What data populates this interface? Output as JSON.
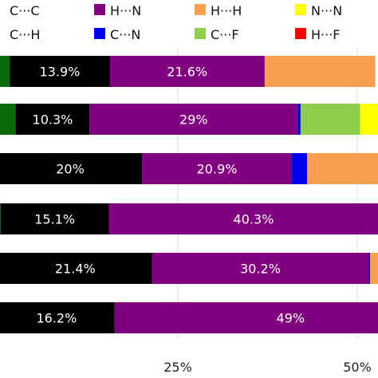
{
  "chart_data": {
    "type": "bar",
    "orientation": "horizontal",
    "stacked": true,
    "xlim": [
      -10,
      130
    ],
    "x_ticks": [
      25,
      50
    ],
    "x_tick_labels": [
      "25%",
      "50%"
    ],
    "grid": "vertical lines at ticks",
    "legend_position": "top",
    "series": [
      {
        "name": "C···C",
        "color": "#000000",
        "values": [
          13.9,
          10.3,
          20.0,
          15.1,
          21.4,
          16.2
        ]
      },
      {
        "name": "C···H",
        "color": "#000000",
        "values": [
          0,
          0,
          0,
          0,
          0,
          0
        ]
      },
      {
        "name": "H···N",
        "color": "#800080",
        "values": [
          21.6,
          29.0,
          20.9,
          40.3,
          30.2,
          49.0
        ]
      },
      {
        "name": "C···N",
        "color": "#0000ee",
        "values": [
          0,
          0.4,
          2.1,
          0,
          0.2,
          0
        ]
      },
      {
        "name": "H···H",
        "color": "#f6a04d",
        "values": [
          15.4,
          0,
          12.0,
          0,
          2.0,
          0
        ]
      },
      {
        "name": "C···F",
        "color": "#8fce4a",
        "values": [
          0,
          8.3,
          0,
          0,
          0,
          0
        ]
      },
      {
        "name": "N···N",
        "color": "#ffff00",
        "values": [
          0,
          3.0,
          0,
          0,
          0,
          0
        ]
      },
      {
        "name": "H···F",
        "color": "#ff0000",
        "values": [
          0,
          0,
          0,
          0,
          0,
          0
        ]
      }
    ],
    "extra_segment": {
      "color": "#0b6b0b",
      "values": [
        1.6,
        2.4,
        0,
        0.3,
        0,
        0
      ]
    },
    "labels": [
      [
        "13.9%",
        "21.6%"
      ],
      [
        "10.3%",
        "29%"
      ],
      [
        "20%",
        "20.9%"
      ],
      [
        "15.1%",
        "40.3%"
      ],
      [
        "21.4%",
        "30.2%"
      ],
      [
        "16.2%",
        "49%"
      ]
    ]
  },
  "legend": {
    "items": [
      {
        "label": "C···C",
        "color": "#ffffff",
        "border": "#ffffff"
      },
      {
        "label": "H···N",
        "color": "#800080"
      },
      {
        "label": "H···H",
        "color": "#f6a04d"
      },
      {
        "label": "N···N",
        "color": "#ffff00"
      },
      {
        "label": "C···H",
        "color": "#ffffff",
        "border": "#ffffff"
      },
      {
        "label": "C···N",
        "color": "#0000ee"
      },
      {
        "label": "C···F",
        "color": "#8fce4a"
      },
      {
        "label": "H···F",
        "color": "#ff0000"
      }
    ]
  }
}
